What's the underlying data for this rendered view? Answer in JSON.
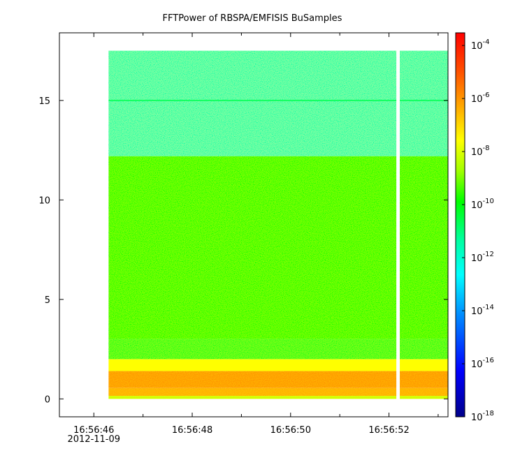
{
  "chart_data": {
    "type": "heatmap",
    "title": "FFTPower of RBSPA/EMFISIS  BuSamples",
    "xlabel": "",
    "ylabel": "",
    "x_ticks": [
      {
        "t": 0,
        "label": "16:56:46",
        "sublabel": "2012-11-09"
      },
      {
        "t": 2,
        "label": "16:56:48"
      },
      {
        "t": 4,
        "label": "16:56:50"
      },
      {
        "t": 6,
        "label": "16:56:52"
      }
    ],
    "x_minor_ticks": [
      1,
      3,
      5,
      7
    ],
    "xlim": [
      -0.7,
      7.2
    ],
    "y_ticks": [
      0,
      5,
      10,
      15
    ],
    "ylim": [
      -0.9,
      18.4
    ],
    "data_extent": {
      "t_start": 0.3,
      "t_end": 7.2,
      "f_min": 0.0,
      "f_max": 17.5
    },
    "data_gap": {
      "t_start": 6.15,
      "t_end": 6.22
    },
    "colorbar": {
      "scale": "log",
      "range": [
        1e-18,
        0.0003
      ],
      "tick_exponents": [
        -18,
        -16,
        -14,
        -12,
        -10,
        -8,
        -6,
        -4
      ],
      "tick_base": "10"
    },
    "bands": [
      {
        "f_from": 0.0,
        "f_to": 0.15,
        "log_power": -8.5
      },
      {
        "f_from": 0.15,
        "f_to": 0.55,
        "log_power": -7.0
      },
      {
        "f_from": 0.55,
        "f_to": 1.4,
        "log_power": -6.7
      },
      {
        "f_from": 1.4,
        "f_to": 2.0,
        "log_power": -8.0
      },
      {
        "f_from": 2.0,
        "f_to": 3.0,
        "log_power": -10.3
      },
      {
        "f_from": 3.0,
        "f_to": 12.2,
        "log_power": -10.0
      },
      {
        "f_from": 12.2,
        "f_to": 17.5,
        "log_power": -12.1
      }
    ],
    "lines": [
      {
        "f": 15.0,
        "log_power": -11.0
      }
    ]
  }
}
